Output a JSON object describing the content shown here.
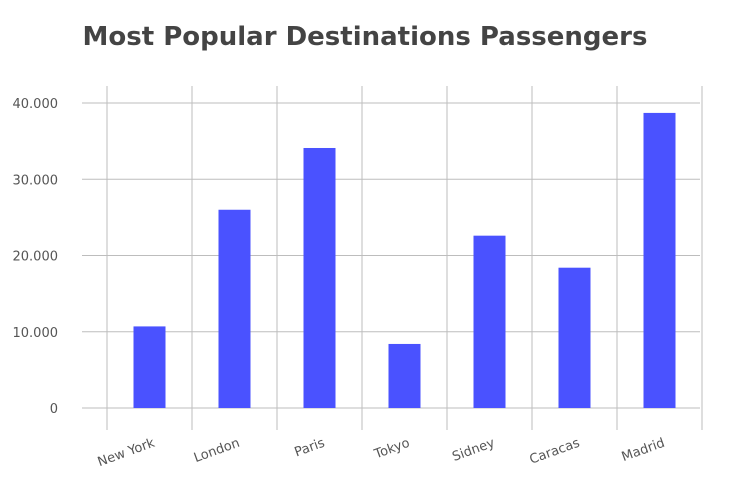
{
  "chart_data": {
    "type": "bar",
    "title": "Most Popular Destinations Passengers",
    "categories": [
      "New York",
      "London",
      "Paris",
      "Tokyo",
      "Sidney",
      "Caracas",
      "Madrid"
    ],
    "values": [
      10700,
      26000,
      34100,
      8400,
      22600,
      18400,
      38700
    ],
    "ylim": [
      0,
      40000
    ],
    "yticks": [
      0,
      10000,
      20000,
      30000,
      40000
    ],
    "ytick_labels": [
      "0",
      "10.000",
      "20.000",
      "30.000",
      "40.000"
    ],
    "bar_color": "#4a52ff",
    "grid": true,
    "xlabel": "",
    "ylabel": ""
  }
}
